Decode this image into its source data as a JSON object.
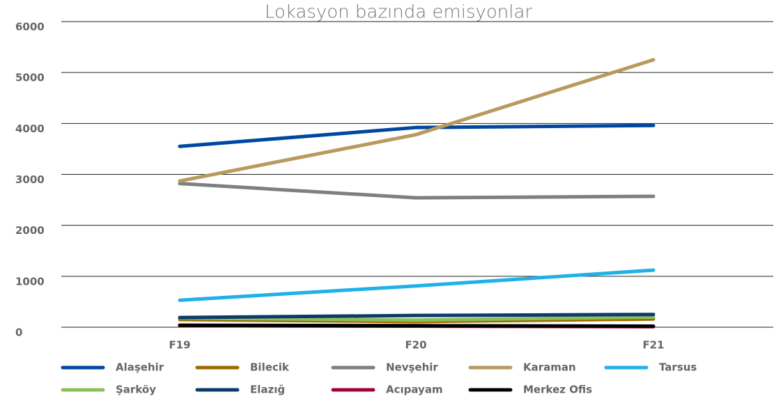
{
  "chart_data": {
    "type": "line",
    "title": "Lokasyon bazında emisyonlar",
    "categories": [
      "F19",
      "F20",
      "F21"
    ],
    "series": [
      {
        "name": "Alaşehir",
        "color": "#0047a0",
        "values": [
          3550,
          3920,
          3960
        ]
      },
      {
        "name": "Bilecik",
        "color": "#9c6b00",
        "values": [
          150,
          110,
          160
        ]
      },
      {
        "name": "Nevşehir",
        "color": "#7f7f7f",
        "values": [
          2820,
          2540,
          2570
        ]
      },
      {
        "name": "Karaman",
        "color": "#b89a5e",
        "values": [
          2870,
          3780,
          5250
        ]
      },
      {
        "name": "Tarsus",
        "color": "#1fb1e8",
        "values": [
          530,
          810,
          1120
        ]
      },
      {
        "name": "Şarköy",
        "color": "#8bbf5a",
        "values": [
          180,
          140,
          200
        ]
      },
      {
        "name": "Elazığ",
        "color": "#0b3a6b",
        "values": [
          190,
          230,
          250
        ]
      },
      {
        "name": "Acıpayam",
        "color": "#a0003a",
        "values": [
          30,
          20,
          10
        ]
      },
      {
        "name": "Merkez Ofis",
        "color": "#000000",
        "values": [
          40,
          30,
          20
        ]
      }
    ],
    "ylim": [
      0,
      6000
    ],
    "yticks": [
      0,
      1000,
      2000,
      3000,
      4000,
      5000,
      6000
    ],
    "grid": true
  }
}
